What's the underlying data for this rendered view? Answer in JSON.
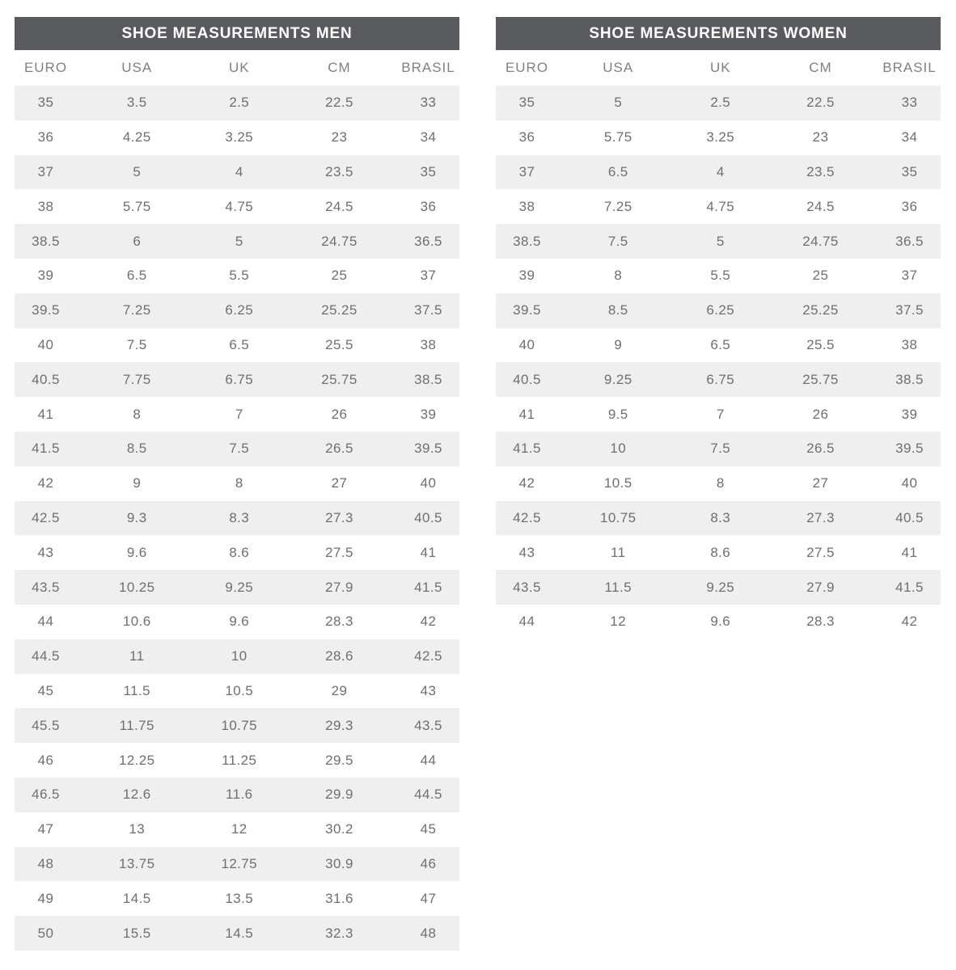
{
  "colors": {
    "title_bar_bg": "#595a5d",
    "title_text": "#ffffff",
    "column_header_text": "#7f8084",
    "cell_text": "#6e6f72",
    "stripe_bg": "#efefef",
    "page_bg": "#ffffff"
  },
  "chart_data": [
    {
      "type": "table",
      "title": "SHOE MEASUREMENTS MEN",
      "columns": [
        "EURO",
        "USA",
        "UK",
        "CM",
        "BRASIL"
      ],
      "rows": [
        [
          "35",
          "3.5",
          "2.5",
          "22.5",
          "33"
        ],
        [
          "36",
          "4.25",
          "3.25",
          "23",
          "34"
        ],
        [
          "37",
          "5",
          "4",
          "23.5",
          "35"
        ],
        [
          "38",
          "5.75",
          "4.75",
          "24.5",
          "36"
        ],
        [
          "38.5",
          "6",
          "5",
          "24.75",
          "36.5"
        ],
        [
          "39",
          "6.5",
          "5.5",
          "25",
          "37"
        ],
        [
          "39.5",
          "7.25",
          "6.25",
          "25.25",
          "37.5"
        ],
        [
          "40",
          "7.5",
          "6.5",
          "25.5",
          "38"
        ],
        [
          "40.5",
          "7.75",
          "6.75",
          "25.75",
          "38.5"
        ],
        [
          "41",
          "8",
          "7",
          "26",
          "39"
        ],
        [
          "41.5",
          "8.5",
          "7.5",
          "26.5",
          "39.5"
        ],
        [
          "42",
          "9",
          "8",
          "27",
          "40"
        ],
        [
          "42.5",
          "9.3",
          "8.3",
          "27.3",
          "40.5"
        ],
        [
          "43",
          "9.6",
          "8.6",
          "27.5",
          "41"
        ],
        [
          "43.5",
          "10.25",
          "9.25",
          "27.9",
          "41.5"
        ],
        [
          "44",
          "10.6",
          "9.6",
          "28.3",
          "42"
        ],
        [
          "44.5",
          "11",
          "10",
          "28.6",
          "42.5"
        ],
        [
          "45",
          "11.5",
          "10.5",
          "29",
          "43"
        ],
        [
          "45.5",
          "11.75",
          "10.75",
          "29.3",
          "43.5"
        ],
        [
          "46",
          "12.25",
          "11.25",
          "29.5",
          "44"
        ],
        [
          "46.5",
          "12.6",
          "11.6",
          "29.9",
          "44.5"
        ],
        [
          "47",
          "13",
          "12",
          "30.2",
          "45"
        ],
        [
          "48",
          "13.75",
          "12.75",
          "30.9",
          "46"
        ],
        [
          "49",
          "14.5",
          "13.5",
          "31.6",
          "47"
        ],
        [
          "50",
          "15.5",
          "14.5",
          "32.3",
          "48"
        ]
      ]
    },
    {
      "type": "table",
      "title": "SHOE MEASUREMENTS WOMEN",
      "columns": [
        "EURO",
        "USA",
        "UK",
        "CM",
        "BRASIL"
      ],
      "rows": [
        [
          "35",
          "5",
          "2.5",
          "22.5",
          "33"
        ],
        [
          "36",
          "5.75",
          "3.25",
          "23",
          "34"
        ],
        [
          "37",
          "6.5",
          "4",
          "23.5",
          "35"
        ],
        [
          "38",
          "7.25",
          "4.75",
          "24.5",
          "36"
        ],
        [
          "38.5",
          "7.5",
          "5",
          "24.75",
          "36.5"
        ],
        [
          "39",
          "8",
          "5.5",
          "25",
          "37"
        ],
        [
          "39.5",
          "8.5",
          "6.25",
          "25.25",
          "37.5"
        ],
        [
          "40",
          "9",
          "6.5",
          "25.5",
          "38"
        ],
        [
          "40.5",
          "9.25",
          "6.75",
          "25.75",
          "38.5"
        ],
        [
          "41",
          "9.5",
          "7",
          "26",
          "39"
        ],
        [
          "41.5",
          "10",
          "7.5",
          "26.5",
          "39.5"
        ],
        [
          "42",
          "10.5",
          "8",
          "27",
          "40"
        ],
        [
          "42.5",
          "10.75",
          "8.3",
          "27.3",
          "40.5"
        ],
        [
          "43",
          "11",
          "8.6",
          "27.5",
          "41"
        ],
        [
          "43.5",
          "11.5",
          "9.25",
          "27.9",
          "41.5"
        ],
        [
          "44",
          "12",
          "9.6",
          "28.3",
          "42"
        ]
      ]
    }
  ]
}
